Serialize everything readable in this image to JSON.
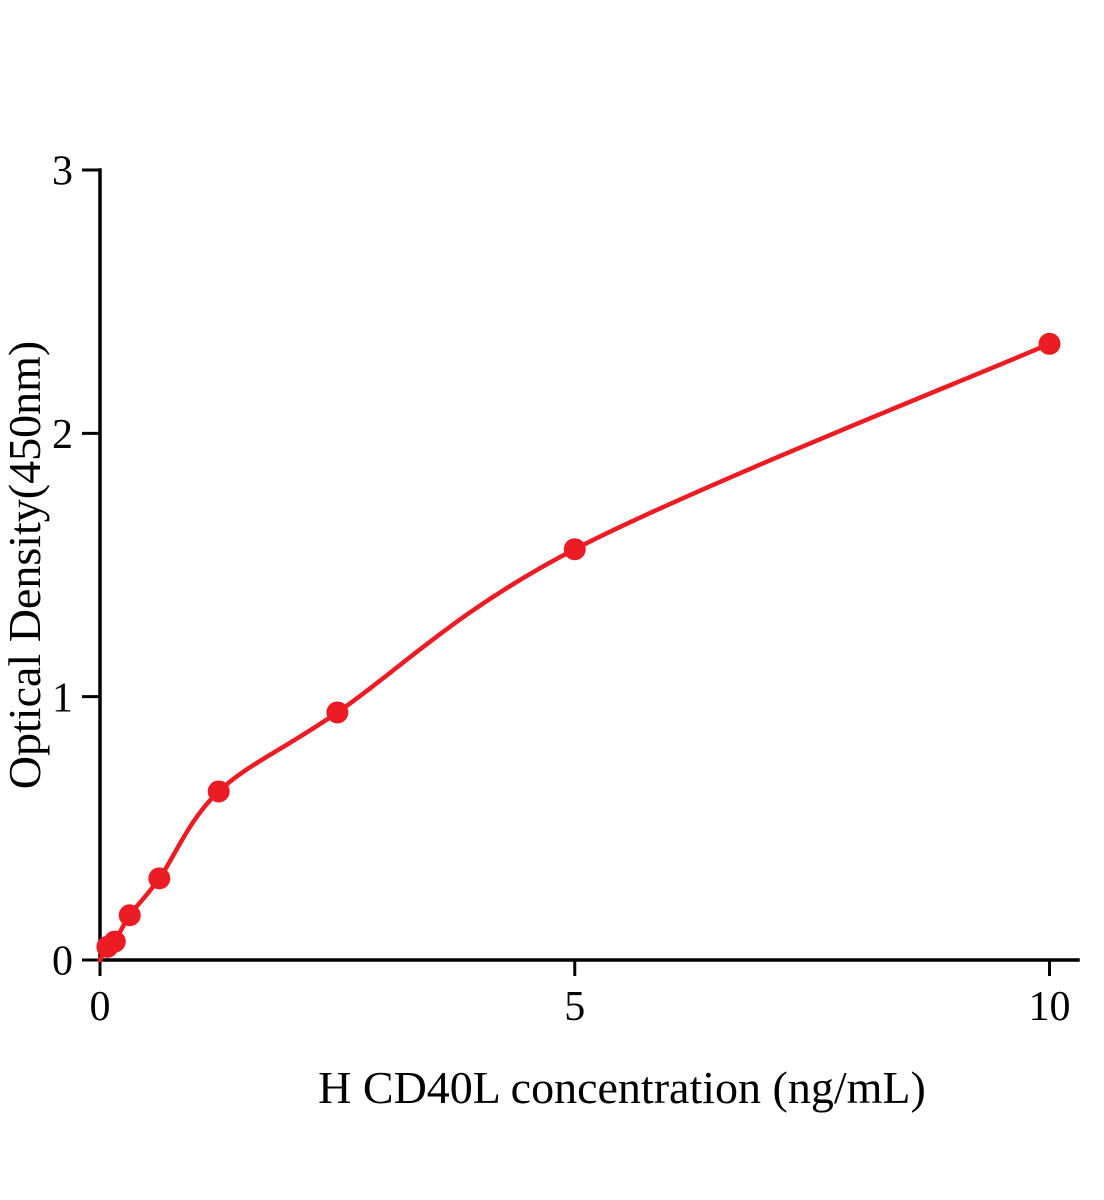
{
  "chart_data": {
    "type": "scatter",
    "title": "",
    "xlabel": "H CD40L concentration (ng/mL)",
    "ylabel": "Optical Density(450nm)",
    "x": [
      0.078,
      0.156,
      0.313,
      0.625,
      1.25,
      2.5,
      5,
      10
    ],
    "y": [
      0.05,
      0.07,
      0.17,
      0.31,
      0.64,
      0.94,
      1.56,
      2.34
    ],
    "curve_start": [
      0,
      0
    ],
    "xlim": [
      0,
      10.3
    ],
    "ylim": [
      0,
      3
    ],
    "x_ticks": [
      0,
      5,
      10
    ],
    "y_ticks": [
      0,
      1,
      2,
      3
    ],
    "marker_color": "#ec1c24",
    "line_color": "#ec1c24",
    "axis_color": "#000000",
    "grid": false,
    "legend": "none"
  }
}
